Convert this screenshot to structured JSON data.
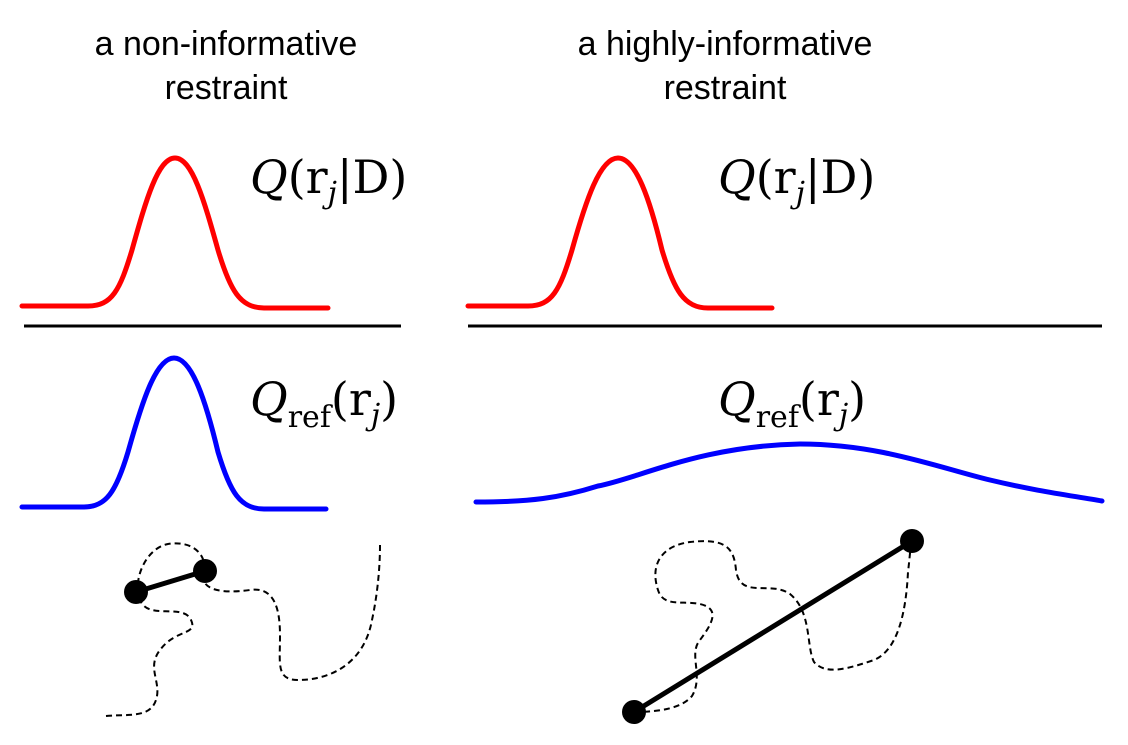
{
  "panels": {
    "left": {
      "title_line1": "a non-informative",
      "title_line2": "restraint"
    },
    "right": {
      "title_line1": "a highly-informative",
      "title_line2": "restraint"
    }
  },
  "labels": {
    "Q_symbol": "Q",
    "posterior_args": "(r",
    "posterior_sub": "j",
    "posterior_given": "|D)",
    "ref_sub": "ref",
    "ref_args": "(r",
    "ref_arg_sub": "j",
    "ref_close": ")"
  },
  "colors": {
    "posterior_curve": "#ff0000",
    "reference_curve": "#0000ff",
    "divider": "#000000",
    "chain": "#000000",
    "restraint_bond": "#000000"
  }
}
